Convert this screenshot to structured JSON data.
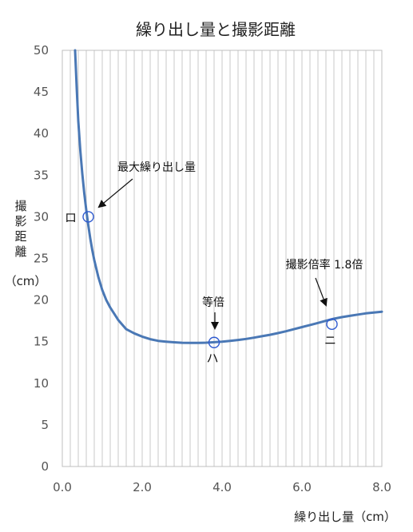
{
  "chart_data": {
    "type": "line",
    "title": "繰り出し量と撮影距離",
    "xlabel": "繰り出し量（cm）",
    "ylabel_chars": [
      "撮",
      "影",
      "距",
      "離"
    ],
    "ylabel_unit": "（cm）",
    "xlim": [
      0,
      8
    ],
    "ylim": [
      0,
      50
    ],
    "xticks": [
      "0.0",
      "2.0",
      "4.0",
      "6.0",
      "8.0"
    ],
    "yticks": [
      "0",
      "5",
      "10",
      "15",
      "20",
      "25",
      "30",
      "35",
      "40",
      "45",
      "50"
    ],
    "grid": "vertical",
    "line_color": "#4a78b5",
    "series": [
      {
        "x": [
          0.32,
          0.36,
          0.4,
          0.45,
          0.5,
          0.55,
          0.6,
          0.65,
          0.7,
          0.75,
          0.8,
          0.9,
          1.0,
          1.1,
          1.2,
          1.4,
          1.6,
          1.8,
          2.0,
          2.2,
          2.4,
          2.6,
          2.8,
          3.0,
          3.2,
          3.4,
          3.6,
          3.8,
          4.0,
          4.2,
          4.4,
          4.6,
          4.8,
          5.0,
          5.2,
          5.4,
          5.6,
          5.8,
          6.0,
          6.2,
          6.4,
          6.6,
          6.8,
          7.0,
          7.2,
          7.4,
          7.6,
          7.8,
          8.0
        ],
        "y": [
          50.0,
          45.5,
          41.5,
          38.0,
          35.2,
          32.8,
          30.8,
          29.0,
          27.4,
          26.0,
          24.8,
          22.8,
          21.2,
          20.0,
          19.1,
          17.6,
          16.5,
          16.0,
          15.6,
          15.3,
          15.1,
          15.0,
          14.92,
          14.87,
          14.85,
          14.85,
          14.88,
          14.93,
          15.0,
          15.1,
          15.2,
          15.33,
          15.48,
          15.65,
          15.83,
          16.03,
          16.25,
          16.5,
          16.75,
          17.0,
          17.25,
          17.5,
          17.75,
          17.95,
          18.1,
          18.25,
          18.4,
          18.5,
          18.6
        ]
      }
    ],
    "points": [
      {
        "label": "ロ",
        "x": 0.65,
        "y": 30.0
      },
      {
        "label": "ハ",
        "x": 3.8,
        "y": 14.9
      },
      {
        "label": "ニ",
        "x": 6.75,
        "y": 17.1
      }
    ],
    "annotations": [
      {
        "text": "最大繰り出し量"
      },
      {
        "text": "等倍"
      },
      {
        "text": "撮影倍率 1.8倍"
      }
    ]
  }
}
